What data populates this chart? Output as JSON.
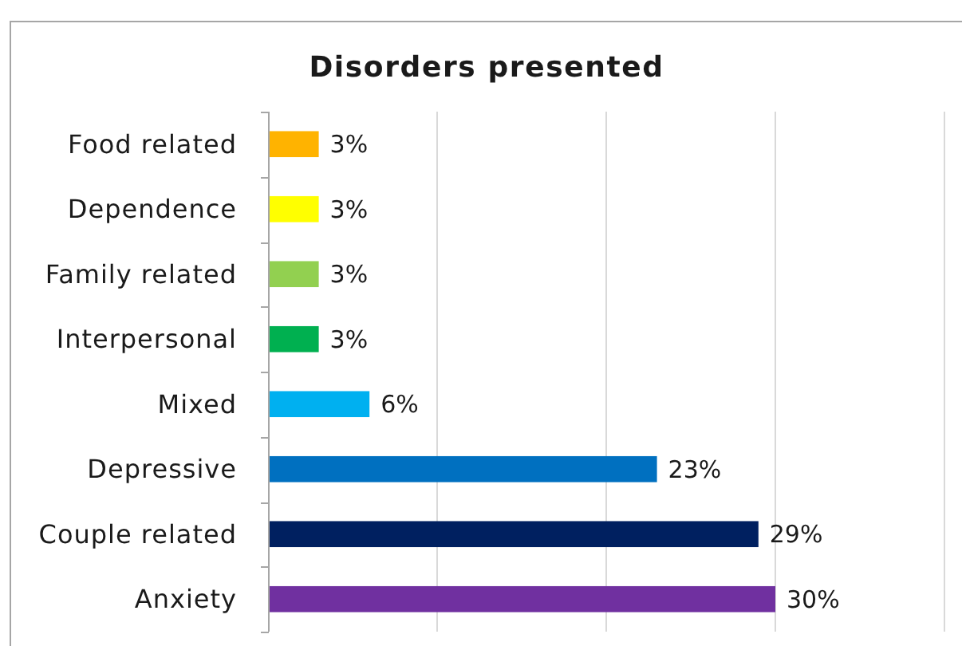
{
  "chart_data": {
    "type": "bar",
    "orientation": "horizontal",
    "title": "Disorders presented",
    "categories": [
      "Food related",
      "Dependence",
      "Family related",
      "Interpersonal",
      "Mixed",
      "Depressive",
      "Couple related",
      "Anxiety"
    ],
    "values": [
      3,
      3,
      3,
      3,
      6,
      23,
      29,
      30
    ],
    "colors": [
      "#ffb300",
      "#ffff00",
      "#92d050",
      "#00b050",
      "#00b0f0",
      "#0070c0",
      "#002060",
      "#7030a0"
    ],
    "value_labels": [
      "3%",
      "3%",
      "3%",
      "3%",
      "6%",
      "23%",
      "29%",
      "30%"
    ],
    "xlim": [
      0,
      40
    ],
    "xticks": [
      {
        "value": 0,
        "label": null
      },
      {
        "value": 10,
        "label": null
      },
      {
        "value": 20,
        "label": null
      },
      {
        "value": 30,
        "label": null
      },
      {
        "value": 40,
        "label": null
      }
    ],
    "grid": "x",
    "tick_labels": "y"
  }
}
